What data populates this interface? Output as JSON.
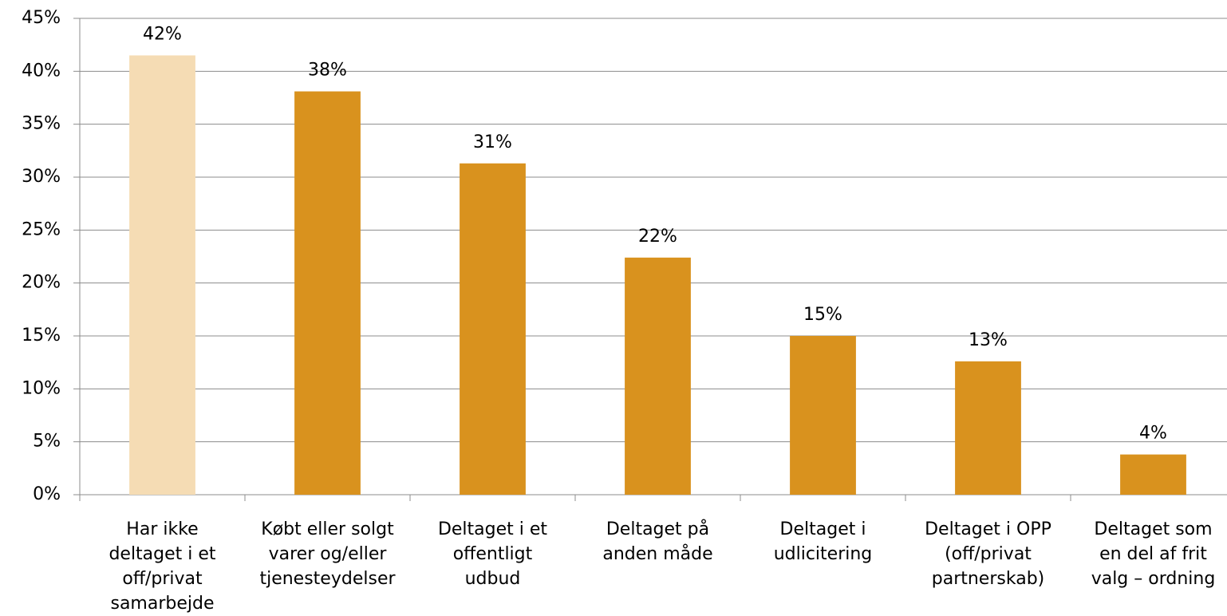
{
  "chart_data": {
    "type": "bar",
    "categories": [
      "Har ikke\ndeltaget i et\noff/privat\nsamarbejde",
      "Købt eller solgt\nvarer og/eller\ntjenesteydelser",
      "Deltaget i et\noffentligt\nudbud",
      "Deltaget på\nanden måde",
      "Deltaget i\nudlicitering",
      "Deltaget i OPP\n(off/privat\npartnerskab)",
      "Deltaget som\nen del af frit\nvalg – ordning"
    ],
    "values": [
      41.5,
      38.1,
      31.3,
      22.4,
      15.0,
      12.6,
      3.8
    ],
    "value_labels": [
      "42%",
      "38%",
      "31%",
      "22%",
      "15%",
      "13%",
      "4%"
    ],
    "colors": [
      "#f5dcb4",
      "#d9921e",
      "#d9921e",
      "#d9921e",
      "#d9921e",
      "#d9921e",
      "#d9921e"
    ],
    "ylim": [
      0,
      45
    ],
    "yticks": [
      {
        "value": 0,
        "label": "0%"
      },
      {
        "value": 5,
        "label": "5%"
      },
      {
        "value": 10,
        "label": "10%"
      },
      {
        "value": 15,
        "label": "15%"
      },
      {
        "value": 20,
        "label": "20%"
      },
      {
        "value": 25,
        "label": "25%"
      },
      {
        "value": 30,
        "label": "30%"
      },
      {
        "value": 35,
        "label": "35%"
      },
      {
        "value": 40,
        "label": "40%"
      },
      {
        "value": 45,
        "label": "45%"
      }
    ],
    "grid": true
  }
}
